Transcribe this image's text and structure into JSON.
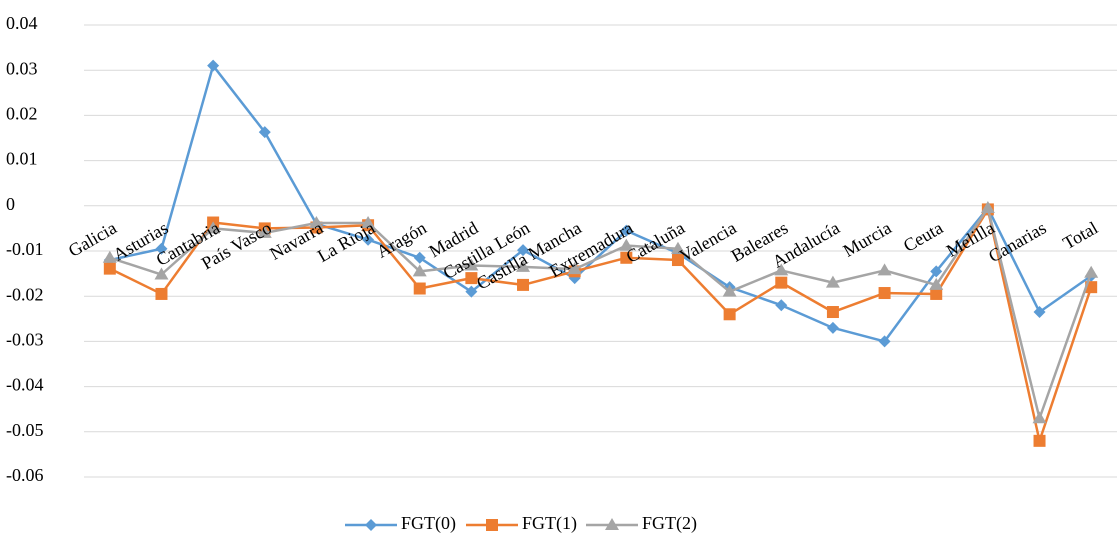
{
  "chart_data": {
    "type": "line",
    "categories": [
      "Galicia",
      "Asturias",
      "Cantabria",
      "País Vasco",
      "Navarra",
      "La Rioja",
      "Aragón",
      "Madrid",
      "Castilla León",
      "Castilla Mancha",
      "Extremadura",
      "Cataluña",
      "Valencia",
      "Baleares",
      "Andalucía",
      "Murcia",
      "Ceuta",
      "Melilla",
      "Canarias",
      "Total"
    ],
    "series": [
      {
        "name": "FGT(0)",
        "color": "#5b9bd5",
        "marker": "diamond",
        "values": [
          -0.012,
          -0.0095,
          0.031,
          0.0163,
          -0.004,
          -0.0075,
          -0.0115,
          -0.019,
          -0.0098,
          -0.016,
          -0.0055,
          -0.0105,
          -0.018,
          -0.022,
          -0.027,
          -0.03,
          -0.0145,
          -0.0005,
          -0.0235,
          -0.0155
        ]
      },
      {
        "name": "FGT(1)",
        "color": "#ed7d31",
        "marker": "square",
        "values": [
          -0.0139,
          -0.0195,
          -0.0037,
          -0.005,
          -0.0048,
          -0.0043,
          -0.0183,
          -0.016,
          -0.0175,
          -0.0145,
          -0.0115,
          -0.012,
          -0.024,
          -0.017,
          -0.0235,
          -0.0193,
          -0.0195,
          -0.0008,
          -0.052,
          -0.018
        ]
      },
      {
        "name": "FGT(2)",
        "color": "#a5a5a5",
        "marker": "triangle",
        "values": [
          -0.0115,
          -0.0152,
          -0.005,
          -0.006,
          -0.0038,
          -0.0038,
          -0.0145,
          -0.0132,
          -0.0135,
          -0.014,
          -0.0088,
          -0.0095,
          -0.019,
          -0.0143,
          -0.017,
          -0.0143,
          -0.0175,
          -0.0005,
          -0.047,
          -0.0148
        ]
      }
    ],
    "ylim": [
      -0.06,
      0.04
    ],
    "yticks": [
      -0.06,
      -0.05,
      -0.04,
      -0.03,
      -0.02,
      -0.01,
      0,
      0.01,
      0.02,
      0.03,
      0.04
    ],
    "grid": true
  }
}
